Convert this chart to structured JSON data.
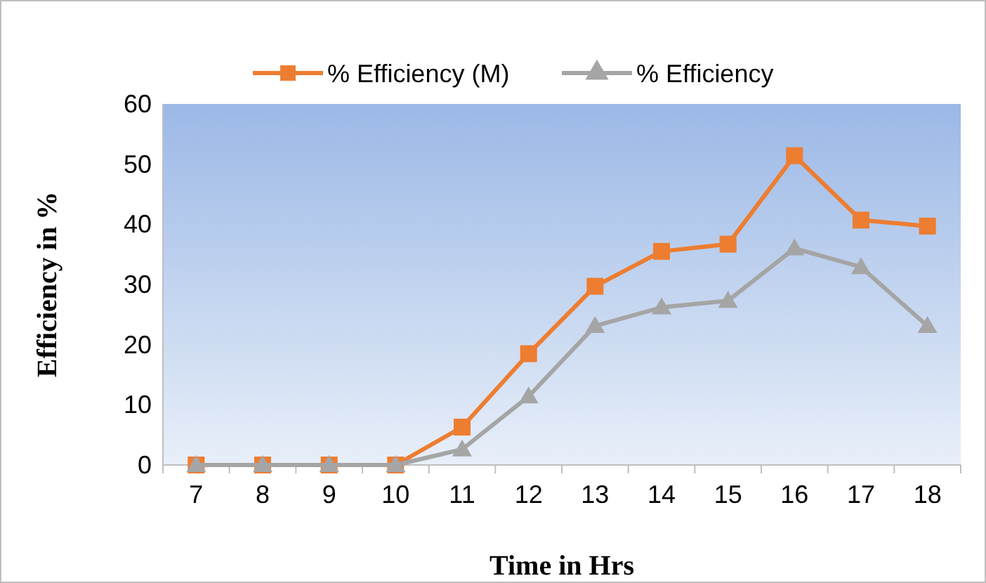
{
  "chart_data": {
    "type": "line",
    "xlabel": "Time in Hrs",
    "ylabel": "Efficiency in %",
    "categories": [
      "7",
      "8",
      "9",
      "10",
      "11",
      "12",
      "13",
      "14",
      "15",
      "16",
      "17",
      "18"
    ],
    "series": [
      {
        "name": "% Efficiency (M)",
        "color": "#ed7d31",
        "marker": "square",
        "values": [
          0,
          0,
          0,
          0,
          6.3,
          18.5,
          29.7,
          35.5,
          36.7,
          51.4,
          40.7,
          39.7
        ]
      },
      {
        "name": "% Efficiency",
        "color": "#a5a5a5",
        "marker": "triangle",
        "values": [
          0,
          0,
          0,
          0,
          2.6,
          11.4,
          23.1,
          26.2,
          27.3,
          36,
          32.9,
          23.1
        ]
      }
    ],
    "ylim": [
      0,
      60
    ],
    "yticks": [
      0,
      10,
      20,
      30,
      40,
      50,
      60
    ],
    "grid": false,
    "legend": "top"
  }
}
